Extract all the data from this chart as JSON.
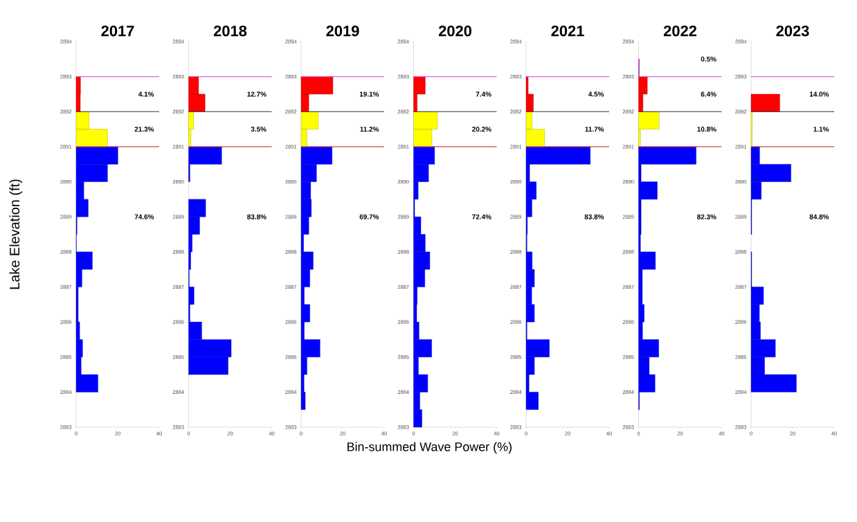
{
  "chart_data": [
    {
      "type": "histogram",
      "orientation": "horizontal",
      "title": "2017",
      "ylabel": "Lake Elevation (ft)",
      "bins": [
        2883,
        2883.5,
        2884,
        2884.5,
        2885,
        2885.5,
        2886,
        2886.5,
        2887,
        2887.5,
        2888,
        2888.5,
        2889,
        2889.5,
        2890,
        2890.5,
        2891,
        2891.5,
        2892,
        2892.5,
        2893,
        2893.5,
        2894
      ],
      "values": [
        0,
        0,
        10.5,
        2.4,
        3.1,
        1.7,
        1.0,
        1.0,
        2.8,
        7.8,
        0.1,
        0.4,
        5.8,
        3.7,
        15.1,
        20.1,
        15.1,
        6.2,
        2.0,
        2.1,
        0,
        0
      ],
      "colors": [
        "#0000ff",
        "#0000ff",
        "#0000ff",
        "#0000ff",
        "#0000ff",
        "#0000ff",
        "#0000ff",
        "#0000ff",
        "#0000ff",
        "#0000ff",
        "#0000ff",
        "#0000ff",
        "#0000ff",
        "#0000ff",
        "#0000ff",
        "#0000ff",
        "#ffff00",
        "#ffff00",
        "#ff0000",
        "#ff0000",
        "#cc33cc",
        "#cc33cc"
      ],
      "xlim": [
        0,
        40
      ],
      "xticks": [
        0,
        20,
        40
      ],
      "ylim": [
        2883,
        2894
      ],
      "yticks": [
        2883,
        2884,
        2885,
        2886,
        2887,
        2888,
        2889,
        2890,
        2891,
        2892,
        2893,
        2894
      ],
      "ref_lines": [
        {
          "axis": "y",
          "value": 2893,
          "color": "#e060e0"
        },
        {
          "axis": "y",
          "value": 2892,
          "color": "#333333"
        },
        {
          "axis": "y",
          "value": 2891,
          "color": "#e04040"
        }
      ],
      "annotations": [
        "4.1%",
        "21.3%",
        "74.6%"
      ]
    },
    {
      "type": "histogram",
      "orientation": "horizontal",
      "title": "2018",
      "bins": [
        2883,
        2883.5,
        2884,
        2884.5,
        2885,
        2885.5,
        2886,
        2886.5,
        2887,
        2887.5,
        2888,
        2888.5,
        2889,
        2889.5,
        2890,
        2890.5,
        2891,
        2891.5,
        2892,
        2892.5,
        2893,
        2893.5,
        2894
      ],
      "values": [
        0,
        0,
        0,
        19.0,
        20.5,
        6.3,
        0.6,
        2.6,
        0.3,
        1.0,
        1.7,
        5.3,
        8.2,
        0,
        0.6,
        15.9,
        1.1,
        2.4,
        7.9,
        4.8,
        0,
        0
      ],
      "colors": [
        "#0000ff",
        "#0000ff",
        "#0000ff",
        "#0000ff",
        "#0000ff",
        "#0000ff",
        "#0000ff",
        "#0000ff",
        "#0000ff",
        "#0000ff",
        "#0000ff",
        "#0000ff",
        "#0000ff",
        "#0000ff",
        "#0000ff",
        "#0000ff",
        "#ffff00",
        "#ffff00",
        "#ff0000",
        "#ff0000",
        "#cc33cc",
        "#cc33cc"
      ],
      "xlim": [
        0,
        40
      ],
      "xticks": [
        0,
        20,
        40
      ],
      "ylim": [
        2883,
        2894
      ],
      "yticks": [
        2883,
        2884,
        2885,
        2886,
        2887,
        2888,
        2889,
        2890,
        2891,
        2892,
        2893,
        2894
      ],
      "ref_lines": [
        {
          "axis": "y",
          "value": 2893,
          "color": "#e060e0"
        },
        {
          "axis": "y",
          "value": 2892,
          "color": "#333333"
        },
        {
          "axis": "y",
          "value": 2891,
          "color": "#e04040"
        }
      ],
      "annotations": [
        "12.7%",
        "3.5%",
        "83.8%"
      ]
    },
    {
      "type": "histogram",
      "orientation": "horizontal",
      "title": "2019",
      "bins": [
        2883,
        2883.5,
        2884,
        2884.5,
        2885,
        2885.5,
        2886,
        2886.5,
        2887,
        2887.5,
        2888,
        2888.5,
        2889,
        2889.5,
        2890,
        2890.5,
        2891,
        2891.5,
        2892,
        2892.5,
        2893,
        2893.5,
        2894
      ],
      "values": [
        0,
        2.0,
        1.4,
        2.8,
        9.1,
        1.5,
        4.2,
        1.5,
        4.2,
        5.8,
        1.2,
        3.7,
        4.9,
        4.6,
        7.4,
        14.9,
        2.8,
        8.3,
        3.7,
        15.3,
        0,
        0
      ],
      "colors": [
        "#0000ff",
        "#0000ff",
        "#0000ff",
        "#0000ff",
        "#0000ff",
        "#0000ff",
        "#0000ff",
        "#0000ff",
        "#0000ff",
        "#0000ff",
        "#0000ff",
        "#0000ff",
        "#0000ff",
        "#0000ff",
        "#0000ff",
        "#0000ff",
        "#ffff00",
        "#ffff00",
        "#ff0000",
        "#ff0000",
        "#cc33cc",
        "#cc33cc"
      ],
      "xlim": [
        0,
        40
      ],
      "xticks": [
        0,
        20,
        40
      ],
      "ylim": [
        2883,
        2894
      ],
      "yticks": [
        2883,
        2884,
        2885,
        2886,
        2887,
        2888,
        2889,
        2890,
        2891,
        2892,
        2893,
        2894
      ],
      "ref_lines": [
        {
          "axis": "y",
          "value": 2893,
          "color": "#e060e0"
        },
        {
          "axis": "y",
          "value": 2892,
          "color": "#333333"
        },
        {
          "axis": "y",
          "value": 2891,
          "color": "#e04040"
        }
      ],
      "annotations": [
        "19.1%",
        "11.2%",
        "69.7%"
      ]
    },
    {
      "type": "histogram",
      "orientation": "horizontal",
      "title": "2020",
      "xlabel": "Bin-summed Wave Power (%)",
      "bins": [
        2883,
        2883.5,
        2884,
        2884.5,
        2885,
        2885.5,
        2886,
        2886.5,
        2887,
        2887.5,
        2888,
        2888.5,
        2889,
        2889.5,
        2890,
        2890.5,
        2891,
        2891.5,
        2892,
        2892.5,
        2893,
        2893.5,
        2894
      ],
      "values": [
        4.0,
        3.0,
        6.8,
        2.3,
        8.7,
        2.6,
        1.5,
        1.7,
        5.4,
        7.8,
        5.6,
        3.5,
        0.5,
        2.2,
        7.2,
        10.1,
        8.8,
        11.5,
        1.7,
        5.6,
        0,
        0
      ],
      "colors": [
        "#0000ff",
        "#0000ff",
        "#0000ff",
        "#0000ff",
        "#0000ff",
        "#0000ff",
        "#0000ff",
        "#0000ff",
        "#0000ff",
        "#0000ff",
        "#0000ff",
        "#0000ff",
        "#0000ff",
        "#0000ff",
        "#0000ff",
        "#0000ff",
        "#ffff00",
        "#ffff00",
        "#ff0000",
        "#ff0000",
        "#cc33cc",
        "#cc33cc"
      ],
      "xlim": [
        0,
        40
      ],
      "xticks": [
        0,
        20,
        40
      ],
      "ylim": [
        2883,
        2894
      ],
      "yticks": [
        2883,
        2884,
        2885,
        2886,
        2887,
        2888,
        2889,
        2890,
        2891,
        2892,
        2893,
        2894
      ],
      "ref_lines": [
        {
          "axis": "y",
          "value": 2893,
          "color": "#e060e0"
        },
        {
          "axis": "y",
          "value": 2892,
          "color": "#333333"
        },
        {
          "axis": "y",
          "value": 2891,
          "color": "#e04040"
        }
      ],
      "annotations": [
        "7.4%",
        "20.2%",
        "72.4%"
      ]
    },
    {
      "type": "histogram",
      "orientation": "horizontal",
      "title": "2021",
      "bins": [
        2883,
        2883.5,
        2884,
        2884.5,
        2885,
        2885.5,
        2886,
        2886.5,
        2887,
        2887.5,
        2888,
        2888.5,
        2889,
        2889.5,
        2890,
        2890.5,
        2891,
        2891.5,
        2892,
        2892.5,
        2893,
        2893.5,
        2894
      ],
      "values": [
        0,
        5.9,
        1.4,
        4.0,
        11.2,
        0.4,
        4.0,
        2.7,
        4.0,
        2.9,
        0.4,
        0.6,
        2.8,
        4.9,
        1.7,
        30.9,
        8.9,
        2.8,
        3.5,
        1.0,
        0,
        0
      ],
      "colors": [
        "#0000ff",
        "#0000ff",
        "#0000ff",
        "#0000ff",
        "#0000ff",
        "#0000ff",
        "#0000ff",
        "#0000ff",
        "#0000ff",
        "#0000ff",
        "#0000ff",
        "#0000ff",
        "#0000ff",
        "#0000ff",
        "#0000ff",
        "#0000ff",
        "#ffff00",
        "#ffff00",
        "#ff0000",
        "#ff0000",
        "#cc33cc",
        "#cc33cc"
      ],
      "xlim": [
        0,
        40
      ],
      "xticks": [
        0,
        20,
        40
      ],
      "ylim": [
        2883,
        2894
      ],
      "yticks": [
        2883,
        2884,
        2885,
        2886,
        2887,
        2888,
        2889,
        2890,
        2891,
        2892,
        2893,
        2894
      ],
      "ref_lines": [
        {
          "axis": "y",
          "value": 2893,
          "color": "#e060e0"
        },
        {
          "axis": "y",
          "value": 2892,
          "color": "#333333"
        },
        {
          "axis": "y",
          "value": 2891,
          "color": "#e04040"
        }
      ],
      "annotations": [
        "4.5%",
        "11.7%",
        "83.8%"
      ]
    },
    {
      "type": "histogram",
      "orientation": "horizontal",
      "title": "2022",
      "bins": [
        2883,
        2883.5,
        2884,
        2884.5,
        2885,
        2885.5,
        2886,
        2886.5,
        2887,
        2887.5,
        2888,
        2888.5,
        2889,
        2889.5,
        2890,
        2890.5,
        2891,
        2891.5,
        2892,
        2892.5,
        2893,
        2893.5,
        2894
      ],
      "values": [
        0,
        0.4,
        7.9,
        5.1,
        9.7,
        1.9,
        2.7,
        1.8,
        1.8,
        8.1,
        0.9,
        1.2,
        1.2,
        9.0,
        1.2,
        27.7,
        0.9,
        9.9,
        2.1,
        4.2,
        0.4,
        0
      ],
      "colors": [
        "#0000ff",
        "#0000ff",
        "#0000ff",
        "#0000ff",
        "#0000ff",
        "#0000ff",
        "#0000ff",
        "#0000ff",
        "#0000ff",
        "#0000ff",
        "#0000ff",
        "#0000ff",
        "#0000ff",
        "#0000ff",
        "#0000ff",
        "#0000ff",
        "#ffff00",
        "#ffff00",
        "#ff0000",
        "#ff0000",
        "#cc33cc",
        "#cc33cc"
      ],
      "xlim": [
        0,
        40
      ],
      "xticks": [
        0,
        20,
        40
      ],
      "ylim": [
        2883,
        2894
      ],
      "yticks": [
        2883,
        2884,
        2885,
        2886,
        2887,
        2888,
        2889,
        2890,
        2891,
        2892,
        2893,
        2894
      ],
      "ref_lines": [
        {
          "axis": "y",
          "value": 2893,
          "color": "#e060e0"
        },
        {
          "axis": "y",
          "value": 2892,
          "color": "#333333"
        },
        {
          "axis": "y",
          "value": 2891,
          "color": "#e04040"
        }
      ],
      "annotations": [
        "0.5%",
        "6.4%",
        "10.8%",
        "82.3%"
      ]
    },
    {
      "type": "histogram",
      "orientation": "horizontal",
      "title": "2023",
      "bins": [
        2883,
        2883.5,
        2884,
        2884.5,
        2885,
        2885.5,
        2886,
        2886.5,
        2887,
        2887.5,
        2888,
        2888.5,
        2889,
        2889.5,
        2890,
        2890.5,
        2891,
        2891.5,
        2892,
        2892.5,
        2893,
        2893.5,
        2894
      ],
      "values": [
        0,
        0,
        21.8,
        6.5,
        11.7,
        4.5,
        4.0,
        6.0,
        0.3,
        0.3,
        0,
        0.3,
        0.3,
        4.9,
        19.2,
        4.1,
        0.5,
        0.6,
        13.8,
        0,
        0,
        0
      ],
      "colors": [
        "#0000ff",
        "#0000ff",
        "#0000ff",
        "#0000ff",
        "#0000ff",
        "#0000ff",
        "#0000ff",
        "#0000ff",
        "#0000ff",
        "#0000ff",
        "#0000ff",
        "#0000ff",
        "#0000ff",
        "#0000ff",
        "#0000ff",
        "#0000ff",
        "#ffff00",
        "#ffff00",
        "#ff0000",
        "#ff0000",
        "#cc33cc",
        "#cc33cc"
      ],
      "xlim": [
        0,
        40
      ],
      "xticks": [
        0,
        20,
        40
      ],
      "ylim": [
        2883,
        2894
      ],
      "yticks": [
        2883,
        2884,
        2885,
        2886,
        2887,
        2888,
        2889,
        2890,
        2891,
        2892,
        2893,
        2894
      ],
      "ref_lines": [
        {
          "axis": "y",
          "value": 2893,
          "color": "#e060e0"
        },
        {
          "axis": "y",
          "value": 2892,
          "color": "#333333"
        },
        {
          "axis": "y",
          "value": 2891,
          "color": "#e04040"
        }
      ],
      "annotations": [
        "14.0%",
        "1.1%",
        "84.8%"
      ]
    }
  ]
}
